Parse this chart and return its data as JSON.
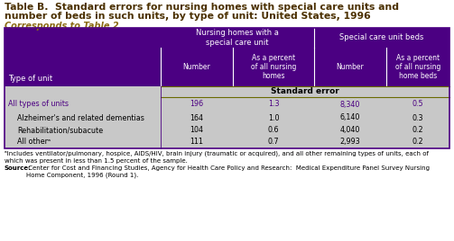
{
  "title_line1": "Table B.  Standard errors for nursing homes with special care units and",
  "title_line2": "number of beds in such units, by type of unit: United States, 1996",
  "subtitle": "Corresponds to Table 2",
  "col_group1": "Nursing homes with a\nspecial care unit",
  "col_group2": "Special care unit beds",
  "col_headers": [
    "Type of unit",
    "Number",
    "As a percent\nof all nursing\nhomes",
    "Number",
    "As a percent\nof all nursing\nhome beds"
  ],
  "section_header": "Standard error",
  "rows": [
    [
      "All types of units",
      "196",
      "1.3",
      "8,340",
      "0.5"
    ],
    [
      "Alzheimer's and related dementias",
      "164",
      "1.0",
      "6,140",
      "0.3"
    ],
    [
      "Rehabilitation/subacute",
      "104",
      "0.6",
      "4,040",
      "0.2"
    ],
    [
      "All otherᵃ",
      "111",
      "0.7",
      "2,993",
      "0.2"
    ]
  ],
  "footnote": "ᵃIncludes ventilator/pulmonary, hospice, AIDS/HIV, brain injury (traumatic or acquired), and all other remaining types of units, each of\nwhich was present in less than 1.5 percent of the sample.",
  "source_bold": "Source:",
  "source_rest": " Center for Cost and Financing Studies, Agency for Health Care Policy and Research:  Medical Expenditure Panel Survey Nursing\nHome Component, 1996 (Round 1).",
  "header_bg": "#4B0082",
  "header_text": "#FFFFFF",
  "table_bg": "#C8C8C8",
  "title_color": "#4B3000",
  "subtitle_color": "#8B6B14",
  "row0_text_color": "#4B0082",
  "row_text_color": "#000000",
  "border_color": "#6B6B00",
  "purple_border": "#4B0082"
}
